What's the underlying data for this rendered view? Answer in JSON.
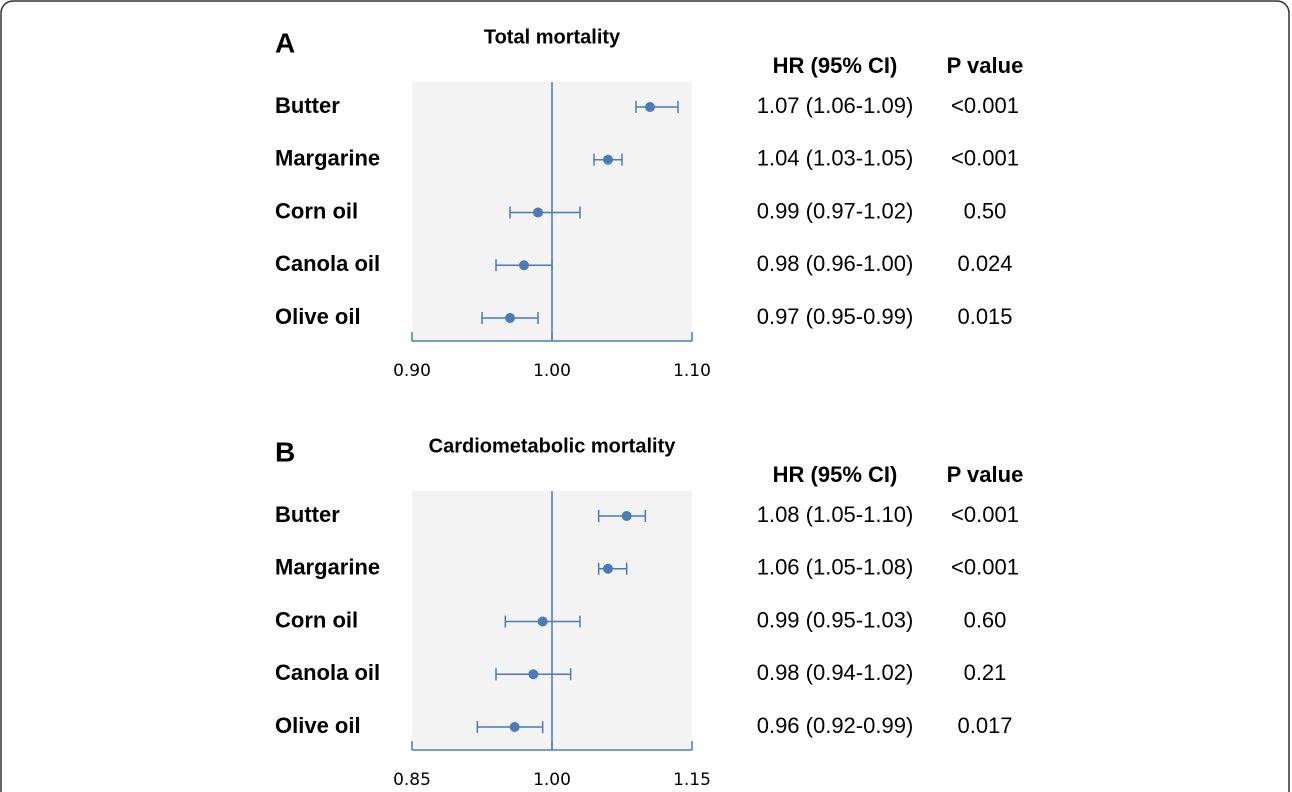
{
  "chart_data": [
    {
      "type": "forest",
      "panel": "A",
      "title": "Total mortality",
      "columns": [
        "HR (95% CI)",
        "P value"
      ],
      "categories": [
        "Butter",
        "Margarine",
        "Corn oil",
        "Canola oil",
        "Olive oil"
      ],
      "values": [
        1.07,
        1.04,
        0.99,
        0.98,
        0.97
      ],
      "ci_low": [
        1.06,
        1.03,
        0.97,
        0.96,
        0.95
      ],
      "ci_high": [
        1.09,
        1.05,
        1.02,
        1.0,
        0.99
      ],
      "hr_labels": [
        "1.07 (1.06-1.09)",
        "1.04 (1.03-1.05)",
        "0.99 (0.97-1.02)",
        "0.98 (0.96-1.00)",
        "0.97 (0.95-0.99)"
      ],
      "p_values": [
        "<0.001",
        "<0.001",
        "0.50",
        "0.024",
        "0.015"
      ],
      "xlim": [
        0.9,
        1.1
      ],
      "xticks": [
        {
          "value": 0.9,
          "label": "0.90"
        },
        {
          "value": 1,
          "label": "1.00"
        },
        {
          "value": 1.1,
          "label": "1.10"
        }
      ],
      "reference": 1,
      "color": "#4a7ab8"
    },
    {
      "type": "forest",
      "panel": "B",
      "title": "Cardiometabolic mortality",
      "columns": [
        "HR (95% CI)",
        "P value"
      ],
      "categories": [
        "Butter",
        "Margarine",
        "Corn oil",
        "Canola oil",
        "Olive oil"
      ],
      "values": [
        1.08,
        1.06,
        0.99,
        0.98,
        0.96
      ],
      "ci_low": [
        1.05,
        1.05,
        0.95,
        0.94,
        0.92
      ],
      "ci_high": [
        1.1,
        1.08,
        1.03,
        1.02,
        0.99
      ],
      "hr_labels": [
        "1.08 (1.05-1.10)",
        "1.06 (1.05-1.08)",
        "0.99 (0.95-1.03)",
        "0.98 (0.94-1.02)",
        "0.96 (0.92-0.99)"
      ],
      "p_values": [
        "<0.001",
        "<0.001",
        "0.60",
        "0.21",
        "0.017"
      ],
      "xlim": [
        0.85,
        1.15
      ],
      "xticks": [
        {
          "value": 0.85,
          "label": "0.85"
        },
        {
          "value": 1,
          "label": "1.00"
        },
        {
          "value": 1.15,
          "label": "1.15"
        }
      ],
      "reference": 1,
      "color": "#4a7ab8"
    }
  ]
}
